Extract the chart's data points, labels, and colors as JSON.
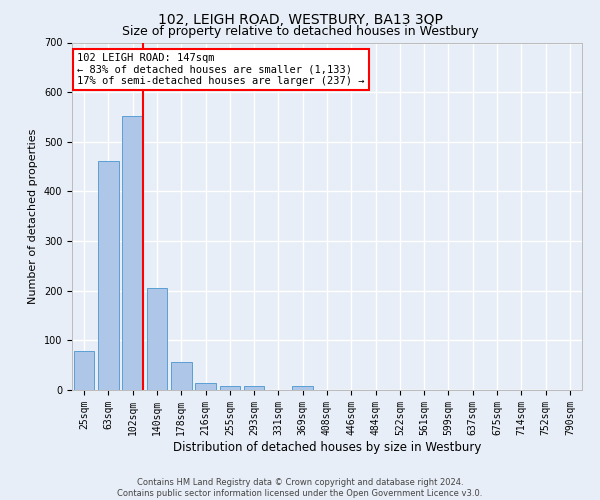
{
  "title": "102, LEIGH ROAD, WESTBURY, BA13 3QP",
  "subtitle": "Size of property relative to detached houses in Westbury",
  "xlabel": "Distribution of detached houses by size in Westbury",
  "ylabel": "Number of detached properties",
  "footer_line1": "Contains HM Land Registry data © Crown copyright and database right 2024.",
  "footer_line2": "Contains public sector information licensed under the Open Government Licence v3.0.",
  "bar_labels": [
    "25sqm",
    "63sqm",
    "102sqm",
    "140sqm",
    "178sqm",
    "216sqm",
    "255sqm",
    "293sqm",
    "331sqm",
    "369sqm",
    "408sqm",
    "446sqm",
    "484sqm",
    "522sqm",
    "561sqm",
    "599sqm",
    "637sqm",
    "675sqm",
    "714sqm",
    "752sqm",
    "790sqm"
  ],
  "bar_values": [
    78,
    462,
    551,
    206,
    57,
    15,
    9,
    9,
    0,
    8,
    0,
    0,
    0,
    0,
    0,
    0,
    0,
    0,
    0,
    0,
    0
  ],
  "bar_color": "#aec6e8",
  "bar_edge_color": "#5a9fd4",
  "red_line_index": 2,
  "annotation_line1": "102 LEIGH ROAD: 147sqm",
  "annotation_line2": "← 83% of detached houses are smaller (1,133)",
  "annotation_line3": "17% of semi-detached houses are larger (237) →",
  "annotation_box_color": "white",
  "annotation_box_edge_color": "red",
  "red_line_color": "red",
  "ylim": [
    0,
    700
  ],
  "yticks": [
    0,
    100,
    200,
    300,
    400,
    500,
    600,
    700
  ],
  "background_color": "#e8eef7",
  "grid_color": "white",
  "title_fontsize": 10,
  "subtitle_fontsize": 9,
  "xlabel_fontsize": 8.5,
  "ylabel_fontsize": 8,
  "tick_fontsize": 7,
  "annotation_fontsize": 7.5,
  "footer_fontsize": 6
}
